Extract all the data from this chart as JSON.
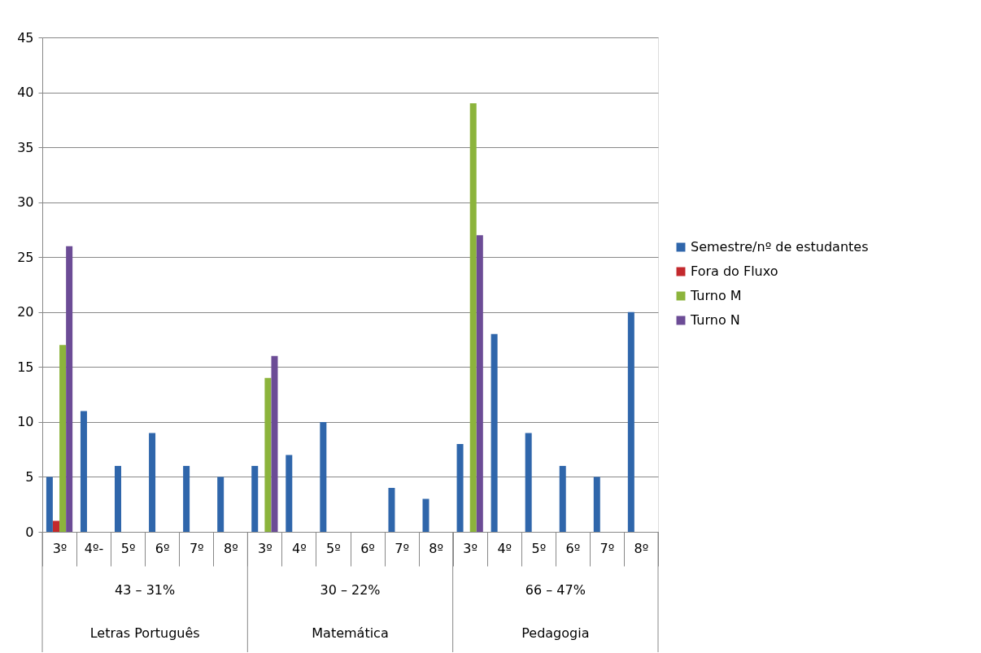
{
  "chart_data": {
    "type": "bar",
    "categories": [
      "3º",
      "4º-",
      "5º",
      "6º",
      "7º",
      "8º",
      "3º",
      "4º",
      "5º",
      "6º",
      "7º",
      "8º",
      "3º",
      "4º",
      "5º",
      "6º",
      "7º",
      "8º"
    ],
    "series": [
      {
        "name": "Semestre/nº de estudantes",
        "color": "#2f66ab",
        "values": [
          5,
          11,
          6,
          9,
          6,
          5,
          6,
          7,
          10,
          null,
          4,
          3,
          8,
          18,
          9,
          6,
          5,
          20
        ]
      },
      {
        "name": "Fora do Fluxo",
        "color": "#c3292d",
        "values": [
          1,
          null,
          null,
          null,
          null,
          null,
          null,
          null,
          null,
          null,
          null,
          null,
          null,
          null,
          null,
          null,
          null,
          null
        ]
      },
      {
        "name": "Turno M",
        "color": "#8cb43c",
        "values": [
          17,
          null,
          null,
          null,
          null,
          null,
          14,
          null,
          null,
          null,
          null,
          null,
          39,
          null,
          null,
          null,
          null,
          null
        ]
      },
      {
        "name": "Turno N",
        "color": "#6c4c96",
        "values": [
          26,
          null,
          null,
          null,
          null,
          null,
          16,
          null,
          null,
          null,
          null,
          null,
          27,
          null,
          null,
          null,
          null,
          null
        ]
      }
    ],
    "annotations": [
      "43 – 31%",
      "30 – 22%",
      "66 – 47%",
      "Letras Português",
      "Matemática",
      "Pedagogia"
    ],
    "ylim": [
      0,
      45
    ],
    "yticks": [
      0,
      5,
      10,
      15,
      20,
      25,
      30,
      35,
      40,
      45
    ],
    "grid": "y",
    "legend": "right"
  }
}
